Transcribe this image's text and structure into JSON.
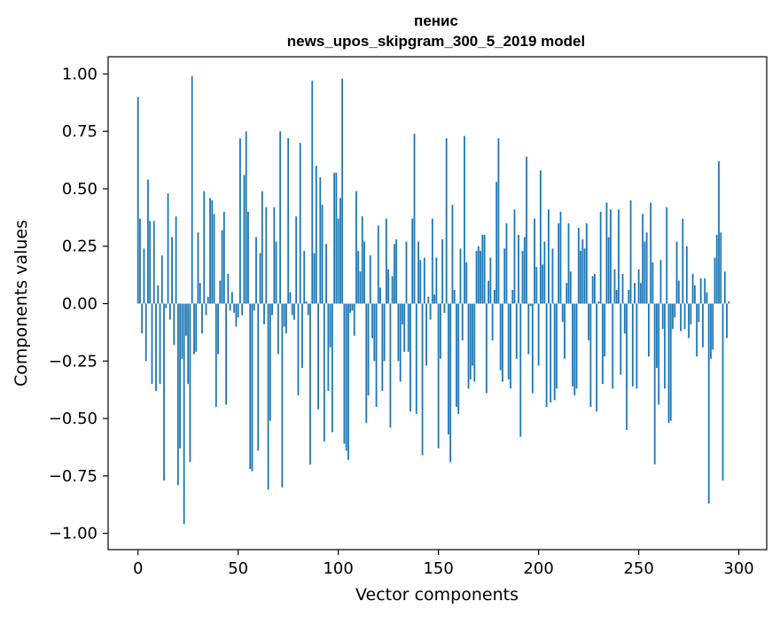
{
  "chart_data": {
    "type": "bar",
    "title_line1": "пенис",
    "title_line2": "news_upos_skipgram_300_5_2019 model",
    "xlabel": "Vector components",
    "ylabel": "Components values",
    "xlim": [
      -14.9,
      313.9
    ],
    "ylim": [
      -1.071,
      1.075
    ],
    "xticks": [
      0,
      50,
      100,
      150,
      200,
      250,
      300
    ],
    "xtick_labels": [
      "0",
      "50",
      "100",
      "150",
      "200",
      "250",
      "300"
    ],
    "yticks": [
      -1.0,
      -0.75,
      -0.5,
      -0.25,
      0.0,
      0.25,
      0.5,
      0.75,
      1.0
    ],
    "ytick_labels": [
      "−1.00",
      "−0.75",
      "−0.50",
      "−0.25",
      "0.00",
      "0.25",
      "0.50",
      "0.75",
      "1.00"
    ],
    "bar_color": "#1f77b4",
    "values": [
      0.9,
      0.37,
      -0.13,
      0.24,
      -0.25,
      0.54,
      0.36,
      -0.35,
      0.36,
      -0.38,
      0.08,
      -0.35,
      0.21,
      -0.77,
      -0.02,
      0.48,
      -0.07,
      0.29,
      -0.18,
      0.38,
      -0.79,
      -0.63,
      -0.24,
      -0.96,
      -0.14,
      -0.35,
      -0.69,
      0.99,
      -0.22,
      -0.21,
      0.31,
      0.09,
      -0.13,
      0.49,
      -0.05,
      0.03,
      0.46,
      0.45,
      0.39,
      -0.45,
      -0.22,
      0.1,
      0.32,
      0.4,
      -0.44,
      0.13,
      -0.03,
      0.05,
      -0.04,
      -0.1,
      -0.06,
      0.72,
      -0.05,
      0.56,
      0.75,
      0.4,
      -0.72,
      -0.73,
      -0.03,
      0.29,
      -0.64,
      0.22,
      0.49,
      -0.09,
      0.42,
      -0.81,
      -0.51,
      -0.05,
      0.42,
      0.27,
      -0.22,
      0.75,
      -0.8,
      -0.1,
      -0.13,
      0.72,
      0.05,
      -0.05,
      -0.07,
      0.38,
      -0.4,
      0.7,
      -0.28,
      0.23,
      0.01,
      -0.05,
      -0.7,
      0.97,
      0.22,
      0.6,
      -0.46,
      0.55,
      0.43,
      -0.6,
      0.26,
      -0.38,
      -0.19,
      -0.56,
      0.57,
      0.57,
      0.37,
      0.46,
      0.98,
      -0.61,
      -0.64,
      -0.68,
      -0.04,
      -0.03,
      -0.14,
      0.49,
      0.23,
      0.14,
      0.38,
      0.27,
      -0.52,
      -0.4,
      0.21,
      -0.15,
      -0.25,
      -0.45,
      0.34,
      0.07,
      -0.38,
      -0.25,
      0.37,
      0.15,
      -0.54,
      0.12,
      0.26,
      0.28,
      -0.25,
      -0.34,
      -0.09,
      -0.21,
      0.27,
      -0.21,
      -0.47,
      0.37,
      0.74,
      -0.48,
      0.27,
      0.19,
      -0.66,
      0.2,
      -0.27,
      0.03,
      -0.07,
      0.37,
      0.04,
      0.2,
      -0.63,
      -0.24,
      0.28,
      -0.04,
      0.72,
      -0.57,
      -0.69,
      0.43,
      0.06,
      -0.45,
      -0.48,
      0.24,
      -0.16,
      0.73,
      0.18,
      -0.37,
      -0.33,
      -0.27,
      -0.34,
      0.23,
      0.25,
      0.23,
      0.3,
      0.3,
      -0.39,
      0.1,
      0.2,
      -0.16,
      0.06,
      0.53,
      0.72,
      -0.29,
      -0.34,
      0.24,
      0.35,
      -0.33,
      -0.37,
      0.06,
      0.41,
      -0.24,
      0.3,
      -0.58,
      0.23,
      0.29,
      0.64,
      -0.22,
      -0.01,
      -0.39,
      0.37,
      0.16,
      -0.27,
      0.58,
      0.17,
      0.27,
      -0.45,
      0.41,
      -0.43,
      0.24,
      -0.42,
      -0.37,
      0.35,
      0.4,
      -0.08,
      -0.24,
      0.09,
      0.35,
      0.14,
      -0.36,
      -0.4,
      -0.37,
      0.33,
      0.23,
      0.28,
      0.24,
      0.35,
      -0.16,
      -0.45,
      0.12,
      0.13,
      -0.47,
      0.01,
      0.4,
      -0.35,
      -0.23,
      0.44,
      0.29,
      0.41,
      -0.37,
      0.15,
      0.06,
      0.41,
      -0.31,
      0.13,
      -0.13,
      -0.55,
      0.06,
      0.45,
      -0.36,
      0.09,
      -0.37,
      0.15,
      0.09,
      0.39,
      0.27,
      0.31,
      -0.23,
      0.44,
      0.18,
      -0.7,
      -0.28,
      -0.44,
      0.19,
      -0.11,
      -0.37,
      0.42,
      -0.52,
      -0.51,
      -0.11,
      -0.06,
      0.27,
      0.1,
      -0.12,
      0.37,
      -0.11,
      0.25,
      -0.15,
      -0.09,
      0.13,
      0.08,
      -0.23,
      -0.08,
      0.11,
      -0.19,
      0.11,
      0.05,
      -0.87,
      -0.24,
      -0.2,
      0.2,
      0.3,
      0.62,
      0.31,
      -0.77,
      0.14,
      -0.15,
      0.01
    ]
  }
}
